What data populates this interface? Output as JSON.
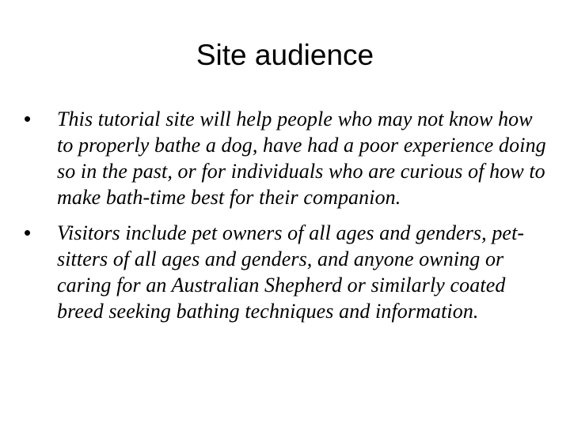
{
  "slide": {
    "title": "Site audience",
    "bullets": [
      {
        "marker": "•",
        "text": "This tutorial site will help people who may not know how to properly bathe a dog, have had a poor experience doing so in the past, or for individuals who are curious of how to make bath-time best for their companion."
      },
      {
        "marker": "•",
        "text": "Visitors include pet owners of all ages and genders, pet-sitters of all ages and genders, and anyone owning or caring for an Australian Shepherd or similarly coated breed seeking bathing techniques and information."
      }
    ]
  }
}
